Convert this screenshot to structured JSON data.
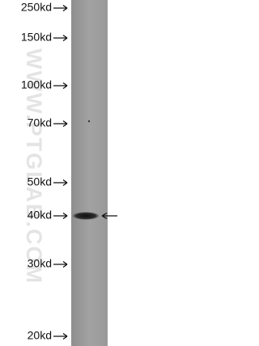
{
  "markers": [
    {
      "label": "250kd"
    },
    {
      "label": "150kd"
    },
    {
      "label": "100kd"
    },
    {
      "label": "70kd"
    },
    {
      "label": "50kd"
    },
    {
      "label": "40kd"
    },
    {
      "label": "30kd"
    },
    {
      "label": "20kd"
    }
  ],
  "watermark": "WWW.PTGLAB.COM"
}
